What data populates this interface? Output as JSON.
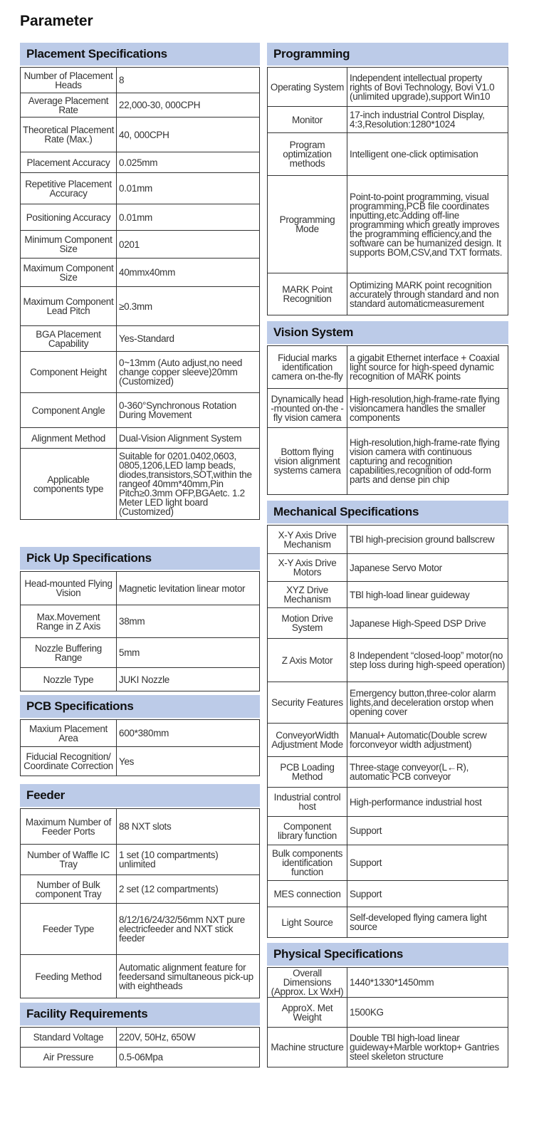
{
  "title": "Parameter",
  "left": [
    {
      "header": "Placement Specifications",
      "rows": [
        [
          "Number of Placement Heads",
          "8"
        ],
        [
          "Average Placement Rate",
          "22,000-30, 000CPH"
        ],
        [
          "Theoretical Placement Rate (Max.)",
          "40, 000CPH"
        ],
        [
          "Placement Accuracy",
          "0.025mm"
        ],
        [
          "Repetitive Placement Accuracy",
          "0.01mm"
        ],
        [
          "Positioning Accuracy",
          "0.01mm"
        ],
        [
          "Minimum Component Size",
          "0201"
        ],
        [
          "Maximum Component Size",
          "40mmx40mm"
        ],
        [
          "Maximum Component Lead Pitch",
          "≥0.3mm"
        ],
        [
          "BGA Placement Capability",
          "Yes-Standard"
        ],
        [
          "Component Height",
          "0~13mm (Auto adjust,no need change copper sleeve)20mm (Customized)"
        ],
        [
          "Component Angle",
          "0-360°Synchronous Rotation During Movement"
        ],
        [
          "Alignment Method",
          "Dual-Vision Alignment System"
        ],
        [
          "Applicable components type",
          "Suitable for 0201.0402,0603, 0805,1206,LED lamp beads, diodes,transistors,SOT,within the rangeof 40mm*40mm,Pin Pitch≥0.3mm OFP,BGAetc. 1.2 Meter LED light board (Customized)"
        ]
      ]
    },
    {
      "header": "Pick Up Specifications",
      "rows": [
        [
          "Head-mounted Flying Vision",
          "Magnetic levitation linear motor"
        ],
        [
          "Max.Movement Range in Z Axis",
          "38mm"
        ],
        [
          "Nozzle Buffering Range",
          "5mm"
        ],
        [
          "Nozzle Type",
          "JUKI Nozzle"
        ]
      ]
    },
    {
      "header": "PCB Specifications",
      "rows": [
        [
          "Maxium Placement Area",
          "600*380mm"
        ],
        [
          "Fiducial Recognition/ Coordinate Correction",
          "Yes"
        ]
      ]
    },
    {
      "header": "Feeder",
      "rows": [
        [
          "Maximum Number of Feeder Ports",
          "88 NXT slots"
        ],
        [
          "Number of Waffle IC Tray",
          "1 set (10 compartments) unlimited"
        ],
        [
          "Number of Bulk component Tray",
          "2 set (12 compartments)"
        ],
        [
          "Feeder Type",
          "8/12/16/24/32/56mm NXT pure electricfeeder and NXT stick feeder"
        ],
        [
          "Feeding Method",
          "Automatic alignment feature for feedersand simultaneous pick-up with eightheads"
        ]
      ]
    },
    {
      "header": "Facility Requirements",
      "rows": [
        [
          "Standard Voltage",
          "220V, 50Hz, 650W"
        ],
        [
          "Air Pressure",
          "0.5-06Mpa"
        ]
      ]
    }
  ],
  "right": [
    {
      "header": "Programming",
      "rows": [
        [
          "Operating System",
          "Independent intellectual property rights of Bovi Technology, Bovi V1.0 (unlimited upgrade),support Win10"
        ],
        [
          "Monitor",
          "17-inch industrial Control Display, 4:3,Resolution:1280*1024"
        ],
        [
          "Program optimization methods",
          "Intelligent one-click optimisation"
        ],
        [
          "Programming Mode",
          "Point-to-point programming, visual programming,PCB file coordinates inputting,etc.Adding off-line programming which greatly improves the programming efficiency,and the software can be humanized design. It supports BOM,CSV,and TXT formats."
        ],
        [
          "MARK Point Recognition",
          "Optimizing MARK point recognition accurately through standard and non standard automaticmeasurement"
        ]
      ]
    },
    {
      "header": "Vision System",
      "rows": [
        [
          "Fiducial marks identification camera on-the-fly",
          "a gigabit Ethernet interface + Coaxial light source for high-speed dynamic recognition of MARK points"
        ],
        [
          "Dynamically head -mounted on-the -fly vision camera",
          "High-resolution,high-frame-rate flying visioncamera handles the smaller components"
        ],
        [
          "Bottom flying vision alignment systems camera",
          "High-resolution,high-frame-rate flying vision camera with continuous capturing and recognition capabilities,recognition of odd-form parts and dense pin chip"
        ]
      ]
    },
    {
      "header": "Mechanical Specifications",
      "rows": [
        [
          "X-Y Axis Drive Mechanism",
          "TBl high-precision ground ballscrew"
        ],
        [
          "X-Y Axis Drive Motors",
          "Japanese Servo Motor"
        ],
        [
          "XYZ Drive Mechanism",
          "TBl high-load linear guideway"
        ],
        [
          "Motion Drive System",
          "Japanese High-Speed DSP Drive"
        ],
        [
          "Z Axis Motor",
          "8 Independent “closed-loop” motor(no step loss during high-speed operation)"
        ],
        [
          "Security Features",
          "Emergency button,three-color alarm lights,and deceleration orstop when opening cover"
        ],
        [
          "ConveyorWidth Adjustment Mode",
          "Manual+ Automatic(Double screw forconveyor width adjustment)"
        ],
        [
          "PCB Loading Method",
          "Three-stage conveyor(L←R), automatic PCB conveyor"
        ],
        [
          "Industrial control host",
          "High-performance industrial host"
        ],
        [
          "Component library function",
          "Support"
        ],
        [
          "Bulk components identification function",
          "Support"
        ],
        [
          "MES connection",
          "Support"
        ],
        [
          "Light Source",
          "Self-developed flying camera light source"
        ]
      ]
    },
    {
      "header": "Physical Specifications",
      "rows": [
        [
          "Overall Dimensions (Approx. Lx WxH)",
          "1440*1330*1450mm"
        ],
        [
          "ApproX. Met Weight",
          "1500KG"
        ],
        [
          "Machine structure",
          "Double TBl high-load linear guideway+Marble worktop+ Gantries steel skeleton structure"
        ]
      ]
    }
  ]
}
